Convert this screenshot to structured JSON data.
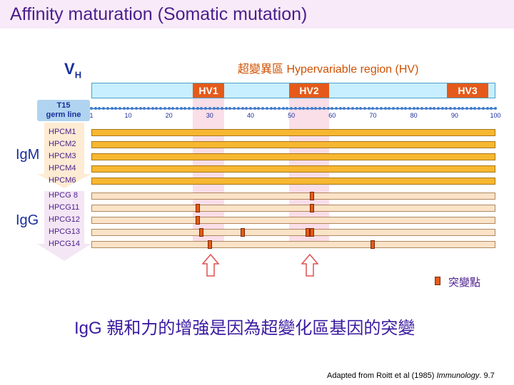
{
  "slide": {
    "title": "Affinity maturation (Somatic mutation)",
    "vh_main": "V",
    "vh_sub": "H",
    "hv_region_title": "超變異區 Hypervariable region (HV)",
    "hv_labels": [
      "HV1",
      "HV2",
      "HV3"
    ],
    "t15_line1": "T15",
    "t15_line2": "germ line",
    "axis_ticks": [
      "1",
      "10",
      "20",
      "30",
      "40",
      "50",
      "60",
      "70",
      "80",
      "90",
      "100"
    ],
    "igm_label": "IgM",
    "igg_label": "IgG",
    "igm_rows": [
      {
        "name": "HPCM1",
        "mutations": []
      },
      {
        "name": "HPCM2",
        "mutations": []
      },
      {
        "name": "HPCM3",
        "mutations": []
      },
      {
        "name": "HPCM4",
        "mutations": []
      },
      {
        "name": "HPCM6",
        "mutations": []
      }
    ],
    "igg_rows": [
      {
        "name": "HPCG 8",
        "mutations": [
          55
        ]
      },
      {
        "name": "HPCG11",
        "mutations": [
          27,
          55
        ]
      },
      {
        "name": "HPCG12",
        "mutations": [
          27
        ]
      },
      {
        "name": "HPCG13",
        "mutations": [
          28,
          38,
          54,
          55
        ]
      },
      {
        "name": "HPCG14",
        "mutations": [
          30,
          70
        ]
      }
    ],
    "legend_label": "突變點",
    "conclusion": "IgG 親和力的增強是因為超變化區基因的突變",
    "citation_prefix": "Adapted from Roitt et al (1985) ",
    "citation_journal": "Immunology",
    "citation_suffix": ". 9.7",
    "colors": {
      "accent": "#4b1e8c",
      "hv_box": "#e55a1a",
      "igm_bar": "#f7b731",
      "igg_bar": "#fbe3c8",
      "mutation": "#e55a1a"
    }
  }
}
